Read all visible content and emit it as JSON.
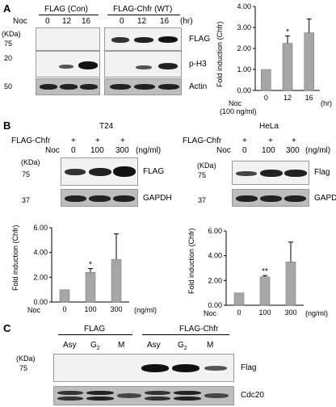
{
  "panelA": {
    "letter": "A",
    "groups": [
      "FLAG (Con)",
      "FLAG-Chfr (WT)"
    ],
    "noc_label": "Noc",
    "time_points": [
      "0",
      "12",
      "16"
    ],
    "time_unit": "(hr)",
    "mw_unit": "(KDa)",
    "mw_markers": [
      "75",
      "20",
      "50"
    ],
    "blot_labels": [
      "FLAG",
      "p-H3",
      "Actin"
    ],
    "chart": {
      "ylabel": "Fold induction (Chfr)",
      "x_prefix": "Noc",
      "x_prefix2": "(100 ng/ml)",
      "x_unit": "(hr)",
      "yticks": [
        "0.00",
        "1.00",
        "2.00",
        "3.00",
        "4.00"
      ]
    }
  },
  "panelB": {
    "letter": "B",
    "cells": [
      "T24",
      "HeLa"
    ],
    "flag_chfr_label": "FLAG-Chfr",
    "plus": "+",
    "noc_label": "Noc",
    "doses": [
      "0",
      "100",
      "300"
    ],
    "dose_unit": "(ng/ml)",
    "mw_unit": "(KDa)",
    "mw_markers": [
      "75",
      "37"
    ],
    "blot_labels_t24": [
      "FLAG",
      "GAPDH"
    ],
    "blot_labels_hela": [
      "Flag",
      "GAPDH"
    ],
    "chart": {
      "ylabel": "Fold induction (Chfr)",
      "x_prefix": "Noc",
      "x_unit": "(ng/ml)",
      "yticks": [
        "0.00",
        "2.00",
        "4.00",
        "6.00"
      ]
    }
  },
  "panelC": {
    "letter": "C",
    "groups": [
      "FLAG",
      "FLAG-Chfr"
    ],
    "phases": [
      "Asy",
      "G",
      "M",
      "Asy",
      "G",
      "M"
    ],
    "g_subscript": "2",
    "mw_unit": "(KDa)",
    "mw_marker": "75",
    "blot_labels": [
      "Flag",
      "Cdc20"
    ]
  },
  "chart_data": [
    {
      "type": "bar",
      "categories": [
        "0",
        "12",
        "16"
      ],
      "values": [
        1.0,
        2.25,
        2.75
      ],
      "errors": [
        0,
        0.35,
        0.65
      ],
      "significance": [
        "",
        "*",
        ""
      ],
      "title": "",
      "xlabel": "Noc (100 ng/ml) (hr)",
      "ylabel": "Fold induction (Chfr)",
      "ylim": [
        0,
        4
      ],
      "color": "#a6a6a6"
    },
    {
      "type": "bar",
      "categories": [
        "0",
        "100",
        "300"
      ],
      "values": [
        1.0,
        2.4,
        3.45
      ],
      "errors": [
        0,
        0.3,
        2.05
      ],
      "significance": [
        "",
        "*",
        ""
      ],
      "title": "",
      "xlabel": "Noc (ng/ml)",
      "ylabel": "Fold induction (Chfr)",
      "ylim": [
        0,
        6
      ],
      "color": "#a6a6a6"
    },
    {
      "type": "bar",
      "categories": [
        "0",
        "100",
        "300"
      ],
      "values": [
        1.0,
        2.3,
        3.5
      ],
      "errors": [
        0,
        0.1,
        1.6
      ],
      "significance": [
        "",
        "**",
        ""
      ],
      "title": "",
      "xlabel": "Noc (ng/ml)",
      "ylabel": "Fold induction (Chfr)",
      "ylim": [
        0,
        6
      ],
      "color": "#a6a6a6"
    }
  ]
}
